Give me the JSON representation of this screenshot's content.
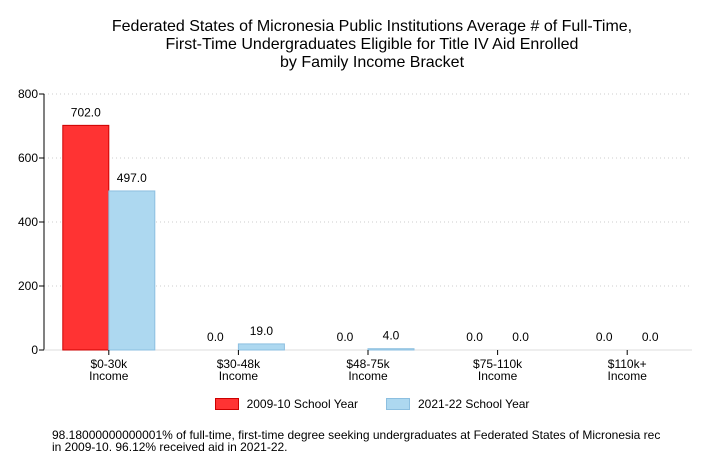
{
  "chart_data": {
    "type": "bar",
    "title": [
      "Federated States of Micronesia Public Institutions Average # of Full-Time,",
      "First-Time Undergraduates Eligible for Title IV Aid Enrolled",
      "by Family Income Bracket"
    ],
    "categories": [
      [
        "$0-30k",
        "Income"
      ],
      [
        "$30-48k",
        "Income"
      ],
      [
        "$48-75k",
        "Income"
      ],
      [
        "$75-110k",
        "Income"
      ],
      [
        "$110k+",
        "Income"
      ]
    ],
    "series": [
      {
        "name": "2009-10 School Year",
        "values": [
          702.0,
          0.0,
          0.0,
          0.0,
          0.0
        ],
        "labels": [
          "702.0",
          "0.0",
          "0.0",
          "0.0",
          "0.0"
        ],
        "color": "#ff3333",
        "stroke": "#cc0000"
      },
      {
        "name": "2021-22 School Year",
        "values": [
          497.0,
          19.0,
          4.0,
          0.0,
          0.0
        ],
        "labels": [
          "497.0",
          "19.0",
          "4.0",
          "0.0",
          "0.0"
        ],
        "color": "#add8f0",
        "stroke": "#8cbfe0"
      }
    ],
    "ylim": [
      0,
      800
    ],
    "yticks": [
      "0",
      "200",
      "400",
      "600",
      "800"
    ],
    "ytick_values": [
      0,
      200,
      400,
      600,
      800
    ],
    "grid": true,
    "legend_position": "bottom"
  },
  "footnote": [
    "98.18000000000001% of full-time, first-time degree seeking undergraduates at Federated States of Micronesia rec",
    "in 2009-10. 96.12% received aid in 2021-22."
  ]
}
